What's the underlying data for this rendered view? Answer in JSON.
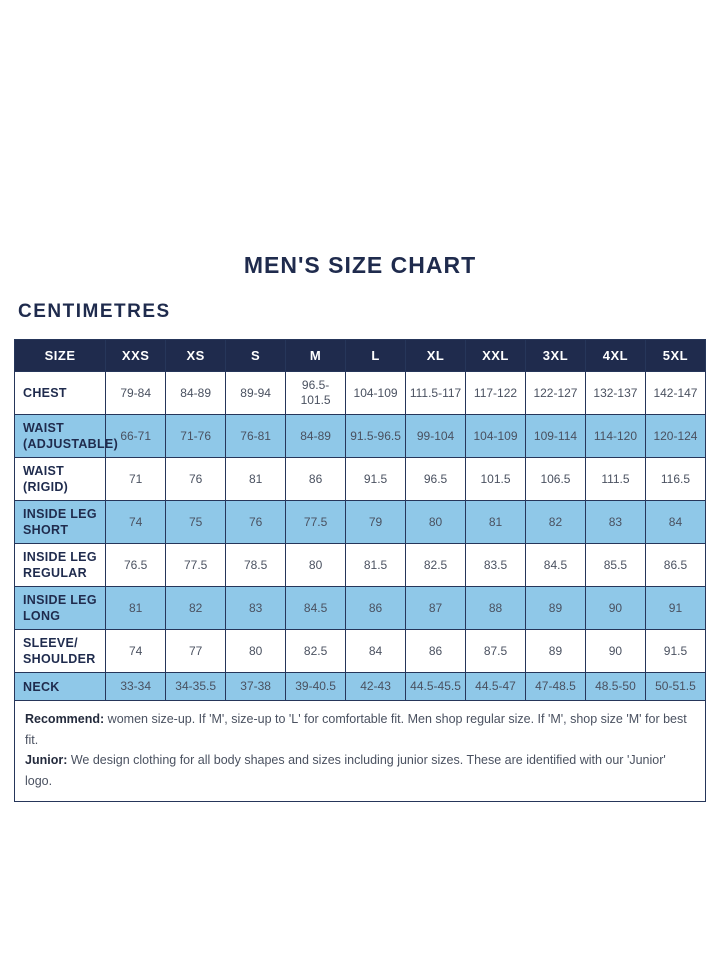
{
  "page": {
    "title": "MEN'S SIZE CHART",
    "subtitle": "CENTIMETRES"
  },
  "colors": {
    "header_bg": "#1f2b4d",
    "header_text": "#ffffff",
    "row_blue": "#8fc8e8",
    "row_white": "#ffffff",
    "grid_border": "#26365a",
    "title_text": "#1f2b4d",
    "cell_text": "#4a5160"
  },
  "chart_data": {
    "type": "table",
    "title": "MEN'S SIZE CHART",
    "unit_label": "CENTIMETRES",
    "columns": [
      "SIZE",
      "XXS",
      "XS",
      "S",
      "M",
      "L",
      "XL",
      "XXL",
      "3XL",
      "4XL",
      "5XL"
    ],
    "rows": [
      {
        "label": "CHEST",
        "shaded": false,
        "values": [
          "79-84",
          "84-89",
          "89-94",
          "96.5-101.5",
          "104-109",
          "111.5-117",
          "117-122",
          "122-127",
          "132-137",
          "142-147"
        ]
      },
      {
        "label": "WAIST (ADJUSTABLE)",
        "shaded": true,
        "values": [
          "66-71",
          "71-76",
          "76-81",
          "84-89",
          "91.5-96.5",
          "99-104",
          "104-109",
          "109-114",
          "114-120",
          "120-124"
        ]
      },
      {
        "label": "WAIST (RIGID)",
        "shaded": false,
        "values": [
          "71",
          "76",
          "81",
          "86",
          "91.5",
          "96.5",
          "101.5",
          "106.5",
          "111.5",
          "116.5"
        ]
      },
      {
        "label": "INSIDE LEG SHORT",
        "shaded": true,
        "values": [
          "74",
          "75",
          "76",
          "77.5",
          "79",
          "80",
          "81",
          "82",
          "83",
          "84"
        ]
      },
      {
        "label": "INSIDE LEG REGULAR",
        "shaded": false,
        "values": [
          "76.5",
          "77.5",
          "78.5",
          "80",
          "81.5",
          "82.5",
          "83.5",
          "84.5",
          "85.5",
          "86.5"
        ]
      },
      {
        "label": "INSIDE LEG LONG",
        "shaded": true,
        "values": [
          "81",
          "82",
          "83",
          "84.5",
          "86",
          "87",
          "88",
          "89",
          "90",
          "91"
        ]
      },
      {
        "label": "SLEEVE/SHOULDER",
        "shaded": false,
        "values": [
          "74",
          "77",
          "80",
          "82.5",
          "84",
          "86",
          "87.5",
          "89",
          "90",
          "91.5"
        ]
      },
      {
        "label": "NECK",
        "shaded": true,
        "values": [
          "33-34",
          "34-35.5",
          "37-38",
          "39-40.5",
          "42-43",
          "44.5-45.5",
          "44.5-47",
          "47-48.5",
          "48.5-50",
          "50-51.5"
        ]
      }
    ]
  },
  "footer": {
    "lines": [
      {
        "label": "Recommend:",
        "text": "women size-up. If 'M', size-up to 'L' for comfortable fit. Men shop regular size. If 'M', shop size 'M' for best fit."
      },
      {
        "label": "Junior:",
        "text": "We design clothing for all body shapes and sizes including junior sizes. These are identified with our 'Junior' logo."
      }
    ]
  }
}
